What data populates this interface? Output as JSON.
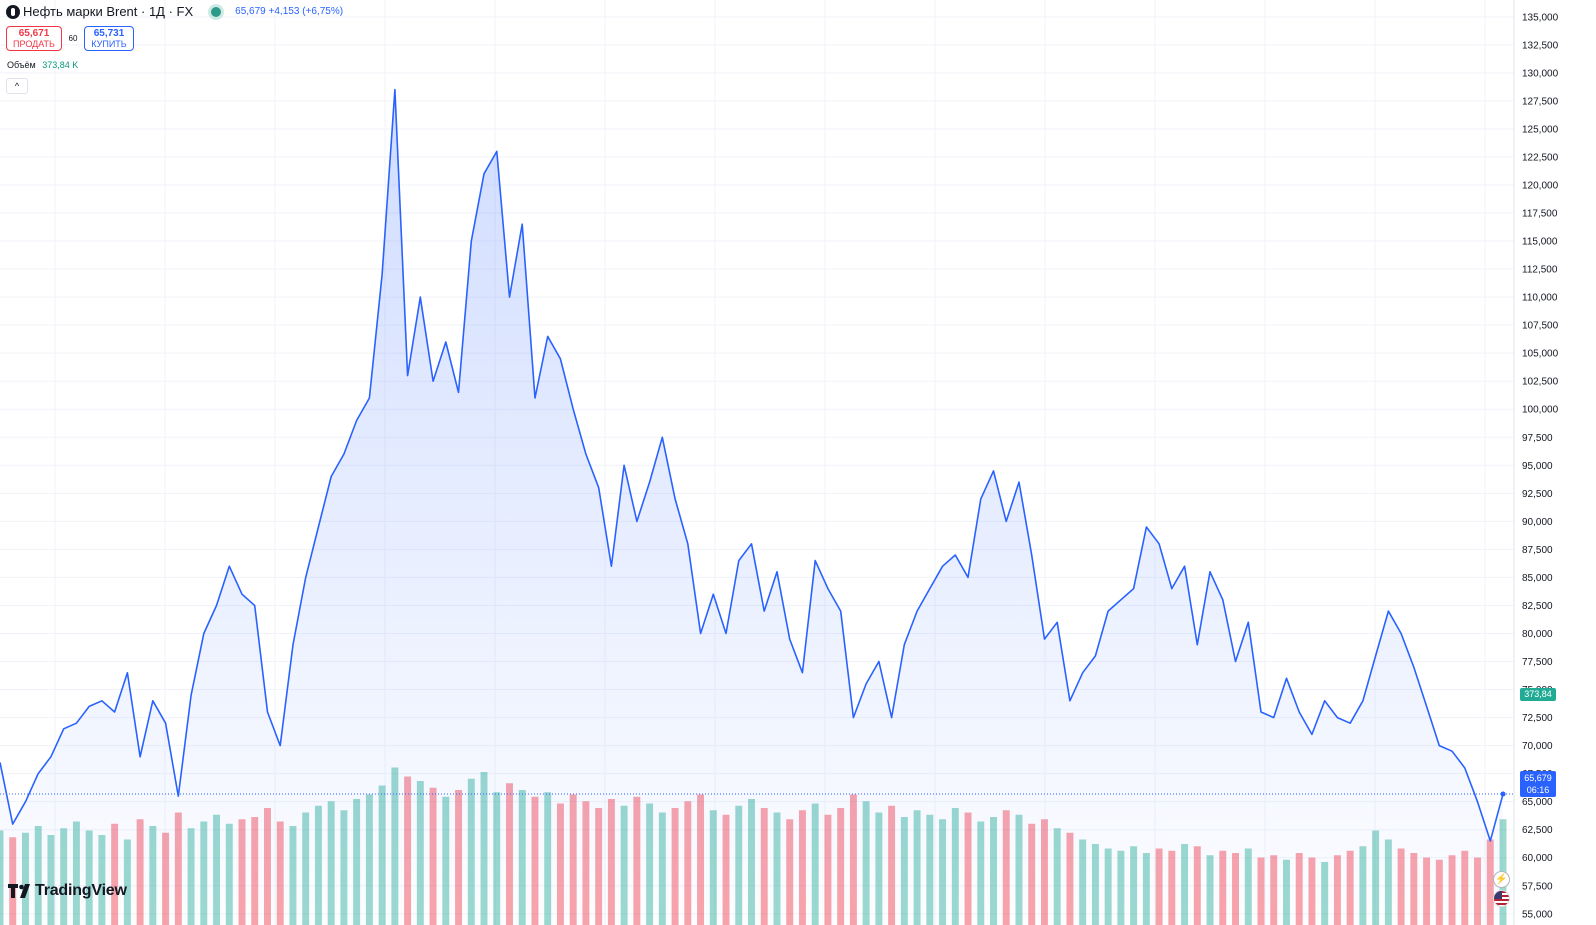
{
  "header": {
    "title": "Нефть марки Brent · 1Д · FX",
    "price": "65,679",
    "change": "+4,153",
    "change_pct": "(+6,75%)"
  },
  "trade": {
    "sell_price": "65,671",
    "sell_label": "ПРОДАТЬ",
    "spread": "60",
    "buy_price": "65,731",
    "buy_label": "КУПИТЬ"
  },
  "volume": {
    "label": "Объём",
    "value": "373,84 K"
  },
  "logo_text": "TradingView",
  "tags": {
    "volume": "373,84 K",
    "price": "65,679",
    "countdown": "06:16"
  },
  "colors": {
    "line": "#2962ff",
    "up": "#22ab94",
    "down": "#f23645",
    "grid": "#f0f3fa"
  },
  "chart_data": {
    "type": "area",
    "ylim": [
      54000,
      136500
    ],
    "y_ticks": [
      "55,000",
      "57,500",
      "60,000",
      "62,500",
      "65,000",
      "67,500",
      "70,000",
      "72,500",
      "75,000",
      "77,500",
      "80,000",
      "82,500",
      "85,000",
      "87,500",
      "90,000",
      "92,500",
      "95,000",
      "97,500",
      "100,000",
      "102,500",
      "105,000",
      "107,500",
      "110,000",
      "112,500",
      "115,000",
      "117,500",
      "120,000",
      "122,500",
      "125,000",
      "127,500",
      "130,000",
      "132,500",
      "135,000"
    ],
    "y_tick_values": [
      55000,
      57500,
      60000,
      62500,
      65000,
      67500,
      70000,
      72500,
      75000,
      77500,
      80000,
      82500,
      85000,
      87500,
      90000,
      92500,
      95000,
      97500,
      100000,
      102500,
      105000,
      107500,
      110000,
      112500,
      115000,
      117500,
      120000,
      122500,
      125000,
      127500,
      130000,
      132500,
      135000
    ],
    "x_ticks": [],
    "last_price": 65679,
    "series": [
      {
        "type": "area",
        "values": [
          68500,
          63000,
          65000,
          67500,
          69000,
          71500,
          72000,
          73500,
          74000,
          73000,
          76500,
          69000,
          74000,
          72000,
          65500,
          74500,
          80000,
          82500,
          86000,
          83500,
          82500,
          73000,
          70000,
          79000,
          85000,
          89500,
          94000,
          96000,
          99000,
          101000,
          112000,
          128500,
          103000,
          110000,
          102500,
          106000,
          101500,
          115000,
          121000,
          123000,
          110000,
          116500,
          101000,
          106500,
          104500,
          100000,
          96000,
          93000,
          86000,
          95000,
          90000,
          93500,
          97500,
          92000,
          88000,
          80000,
          83500,
          80000,
          86500,
          88000,
          82000,
          85500,
          79500,
          76500,
          86500,
          84000,
          82000,
          72500,
          75500,
          77500,
          72500,
          79000,
          82000,
          84000,
          86000,
          87000,
          85000,
          92000,
          94500,
          90000,
          93500,
          87000,
          79500,
          81000,
          74000,
          76500,
          78000,
          82000,
          83000,
          84000,
          89500,
          88000,
          84000,
          86000,
          79000,
          85500,
          83000,
          77500,
          81000,
          73000,
          72500,
          76000,
          73000,
          71000,
          74000,
          72500,
          72000,
          74000,
          78000,
          82000,
          80000,
          77000,
          73500,
          70000,
          69500,
          68000,
          65000,
          61500,
          65679
        ],
        "volumes": [
          0.42,
          0.39,
          0.41,
          0.44,
          0.4,
          0.43,
          0.46,
          0.42,
          0.4,
          0.45,
          0.38,
          0.47,
          0.44,
          0.41,
          0.5,
          0.43,
          0.46,
          0.49,
          0.45,
          0.47,
          0.48,
          0.52,
          0.46,
          0.44,
          0.5,
          0.53,
          0.55,
          0.51,
          0.56,
          0.58,
          0.62,
          0.7,
          0.66,
          0.64,
          0.61,
          0.57,
          0.6,
          0.65,
          0.68,
          0.59,
          0.63,
          0.6,
          0.57,
          0.59,
          0.54,
          0.58,
          0.55,
          0.52,
          0.56,
          0.53,
          0.57,
          0.54,
          0.5,
          0.52,
          0.55,
          0.58,
          0.51,
          0.49,
          0.53,
          0.56,
          0.52,
          0.5,
          0.47,
          0.51,
          0.54,
          0.49,
          0.52,
          0.58,
          0.55,
          0.5,
          0.53,
          0.48,
          0.51,
          0.49,
          0.47,
          0.52,
          0.5,
          0.46,
          0.48,
          0.51,
          0.49,
          0.45,
          0.47,
          0.43,
          0.41,
          0.38,
          0.36,
          0.34,
          0.33,
          0.35,
          0.32,
          0.34,
          0.33,
          0.36,
          0.35,
          0.31,
          0.33,
          0.32,
          0.34,
          0.3,
          0.31,
          0.29,
          0.32,
          0.3,
          0.28,
          0.31,
          0.33,
          0.35,
          0.42,
          0.38,
          0.34,
          0.32,
          0.3,
          0.29,
          0.31,
          0.33,
          0.3,
          0.38,
          0.47
        ]
      }
    ]
  }
}
